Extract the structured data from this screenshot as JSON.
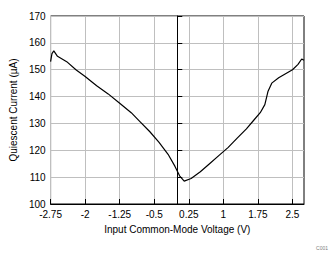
{
  "chart_data": {
    "type": "line",
    "xlabel": "Input Common-Mode Voltage (V)",
    "ylabel": "Quiescent Current (µA)",
    "annotation": "C001",
    "x": [
      -2.75,
      -2.72,
      -2.68,
      -2.6,
      -2.5,
      -2.4,
      -2.2,
      -2.0,
      -1.75,
      -1.5,
      -1.25,
      -1.0,
      -0.8,
      -0.6,
      -0.4,
      -0.2,
      -0.05,
      0.05,
      0.15,
      0.3,
      0.5,
      0.7,
      0.9,
      1.1,
      1.3,
      1.5,
      1.65,
      1.8,
      1.9,
      1.97,
      2.05,
      2.2,
      2.35,
      2.5,
      2.62,
      2.7,
      2.75
    ],
    "values": [
      153,
      156,
      157,
      155,
      154,
      153,
      150,
      147.5,
      144,
      141,
      137.5,
      134,
      130.5,
      127,
      123,
      118.5,
      114,
      110.5,
      108.5,
      109.5,
      112,
      115,
      118,
      121,
      124.5,
      128,
      131,
      134,
      137,
      142,
      145,
      147,
      148.5,
      150,
      152,
      154,
      153.5
    ],
    "color": "#000000",
    "xlim": [
      -2.75,
      2.75
    ],
    "xticks": [
      -2.75,
      -2,
      -1.25,
      -0.5,
      0.25,
      1,
      1.75,
      2.5
    ],
    "ylim": [
      100,
      170
    ],
    "yticks": [
      100,
      110,
      120,
      130,
      140,
      150,
      160,
      170
    ],
    "grid": true
  }
}
